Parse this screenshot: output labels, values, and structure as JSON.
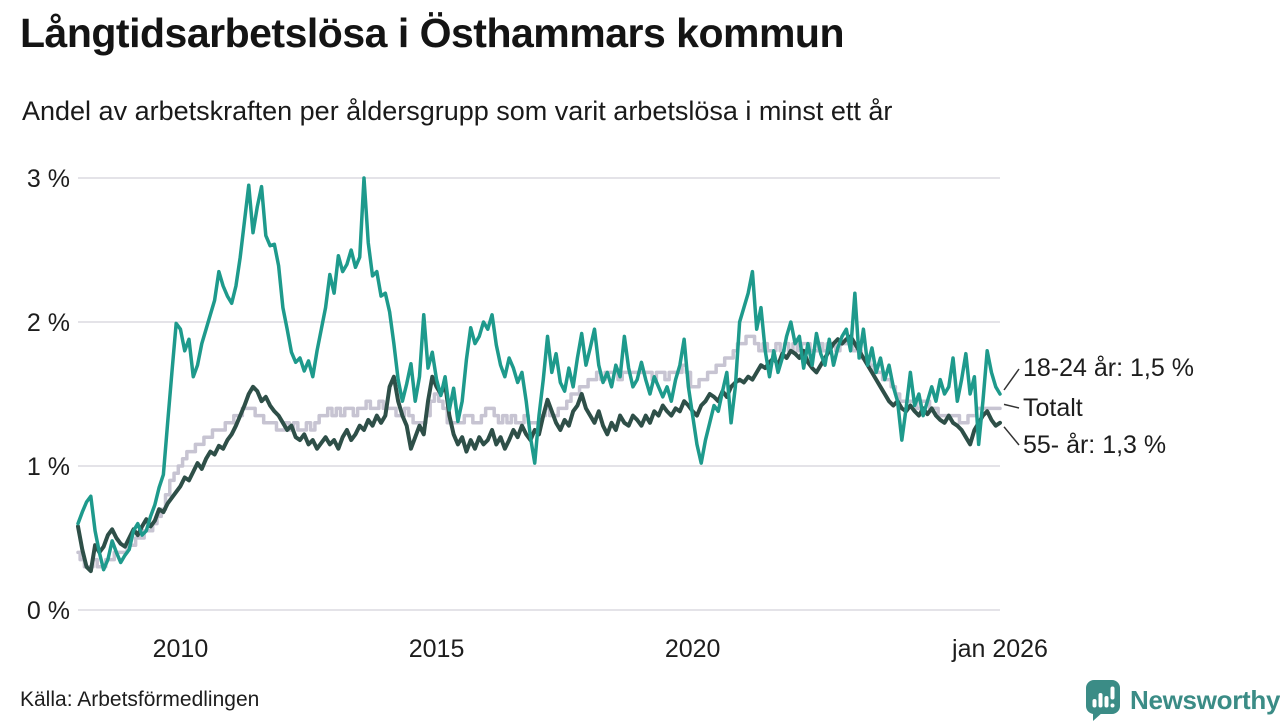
{
  "header": {
    "title": "Långtidsarbetslösa i Östhammars kommun",
    "subtitle": "Andel av arbetskraften per åldersgrupp som varit arbetslösa i minst ett år"
  },
  "footer": {
    "source": "Källa: Arbetsförmedlingen",
    "brand": "Newsworthy"
  },
  "colors": {
    "youth_line": "#1e9a8c",
    "total_line": "#c7c4d2",
    "senior_line": "#2e4f48",
    "gridline": "#e4e3e8",
    "text": "#1d1d1d",
    "brand_teal": "#3b8c86"
  },
  "chart_data": {
    "type": "line",
    "title": "Långtidsarbetslösa i Östhammars kommun",
    "subtitle": "Andel av arbetskraften per åldersgrupp som varit arbetslösa i minst ett år",
    "x_unit": "month",
    "x_range": [
      "2008-01",
      "2026-01"
    ],
    "ylim": [
      0,
      3
    ],
    "grid": "horizontal",
    "legend_position": "right-end-labels",
    "y_ticks": [
      {
        "value": 0,
        "label": "0 %"
      },
      {
        "value": 1,
        "label": "1 %"
      },
      {
        "value": 2,
        "label": "2 %"
      },
      {
        "value": 3,
        "label": "3 %"
      }
    ],
    "x_ticks": [
      {
        "month_index": 24,
        "label": "2010"
      },
      {
        "month_index": 84,
        "label": "2015"
      },
      {
        "month_index": 144,
        "label": "2020"
      },
      {
        "month_index": 216,
        "label": "jan 2026"
      }
    ],
    "series": [
      {
        "id": "18-24",
        "name": "18-24 år",
        "end_label": "18-24 år: 1,5 %",
        "end_value": 1.5,
        "color": "#1e9a8c",
        "width": 3.5,
        "step": false,
        "values": [
          0.6,
          0.68,
          0.75,
          0.79,
          0.55,
          0.4,
          0.28,
          0.35,
          0.48,
          0.4,
          0.33,
          0.38,
          0.42,
          0.55,
          0.6,
          0.52,
          0.55,
          0.65,
          0.73,
          0.85,
          0.94,
          1.3,
          1.65,
          1.99,
          1.95,
          1.8,
          1.88,
          1.62,
          1.7,
          1.85,
          1.95,
          2.05,
          2.15,
          2.35,
          2.25,
          2.18,
          2.13,
          2.25,
          2.45,
          2.7,
          2.95,
          2.62,
          2.8,
          2.94,
          2.6,
          2.53,
          2.54,
          2.39,
          2.1,
          1.95,
          1.79,
          1.72,
          1.75,
          1.66,
          1.73,
          1.62,
          1.8,
          1.95,
          2.1,
          2.33,
          2.2,
          2.46,
          2.35,
          2.4,
          2.5,
          2.38,
          2.45,
          3.0,
          2.55,
          2.32,
          2.35,
          2.18,
          2.2,
          2.07,
          1.85,
          1.6,
          1.45,
          1.57,
          1.71,
          1.45,
          1.62,
          2.05,
          1.68,
          1.79,
          1.6,
          1.49,
          1.62,
          1.39,
          1.54,
          1.31,
          1.45,
          1.74,
          1.96,
          1.85,
          1.9,
          2.0,
          1.95,
          2.05,
          1.84,
          1.7,
          1.62,
          1.75,
          1.68,
          1.58,
          1.65,
          1.45,
          1.2,
          1.02,
          1.35,
          1.6,
          1.9,
          1.65,
          1.78,
          1.58,
          1.52,
          1.68,
          1.55,
          1.75,
          1.92,
          1.7,
          1.82,
          1.95,
          1.7,
          1.58,
          1.65,
          1.55,
          1.7,
          1.62,
          1.9,
          1.68,
          1.55,
          1.6,
          1.72,
          1.6,
          1.5,
          1.62,
          1.55,
          1.48,
          1.55,
          1.45,
          1.6,
          1.7,
          1.88,
          1.55,
          1.35,
          1.15,
          1.02,
          1.18,
          1.3,
          1.42,
          1.38,
          1.52,
          1.65,
          1.3,
          1.55,
          2.0,
          2.1,
          2.2,
          2.35,
          1.95,
          2.1,
          1.8,
          1.62,
          1.8,
          1.65,
          1.75,
          1.9,
          2.0,
          1.85,
          1.9,
          1.68,
          1.85,
          1.7,
          1.92,
          1.78,
          1.7,
          1.88,
          1.7,
          1.82,
          1.9,
          1.95,
          1.8,
          2.2,
          1.75,
          1.95,
          1.7,
          1.82,
          1.65,
          1.75,
          1.6,
          1.7,
          1.55,
          1.45,
          1.18,
          1.4,
          1.65,
          1.42,
          1.5,
          1.35,
          1.45,
          1.55,
          1.45,
          1.6,
          1.5,
          1.55,
          1.75,
          1.45,
          1.6,
          1.78,
          1.5,
          1.62,
          1.15,
          1.45,
          1.8,
          1.65,
          1.55,
          1.5
        ]
      },
      {
        "id": "totalt",
        "name": "Totalt",
        "end_label": "Totalt",
        "end_value": 1.4,
        "color": "#c7c4d2",
        "width": 3.5,
        "step": true,
        "values": [
          0.4,
          0.35,
          0.3,
          0.3,
          0.35,
          0.3,
          0.3,
          0.35,
          0.35,
          0.4,
          0.4,
          0.4,
          0.45,
          0.45,
          0.5,
          0.5,
          0.55,
          0.55,
          0.6,
          0.65,
          0.7,
          0.8,
          0.9,
          0.95,
          1.0,
          1.05,
          1.1,
          1.1,
          1.15,
          1.15,
          1.2,
          1.2,
          1.25,
          1.25,
          1.25,
          1.3,
          1.3,
          1.35,
          1.35,
          1.4,
          1.4,
          1.4,
          1.35,
          1.35,
          1.3,
          1.3,
          1.3,
          1.25,
          1.25,
          1.3,
          1.25,
          1.3,
          1.25,
          1.25,
          1.3,
          1.25,
          1.3,
          1.35,
          1.35,
          1.4,
          1.35,
          1.4,
          1.35,
          1.4,
          1.4,
          1.35,
          1.4,
          1.4,
          1.45,
          1.4,
          1.4,
          1.45,
          1.4,
          1.4,
          1.4,
          1.35,
          1.35,
          1.4,
          1.35,
          1.3,
          1.3,
          1.3,
          1.35,
          1.45,
          1.5,
          1.45,
          1.4,
          1.3,
          1.3,
          1.3,
          1.3,
          1.35,
          1.35,
          1.3,
          1.3,
          1.35,
          1.4,
          1.4,
          1.35,
          1.3,
          1.35,
          1.3,
          1.35,
          1.3,
          1.3,
          1.35,
          1.3,
          1.3,
          1.3,
          1.35,
          1.4,
          1.35,
          1.35,
          1.4,
          1.4,
          1.45,
          1.5,
          1.5,
          1.55,
          1.55,
          1.6,
          1.6,
          1.65,
          1.6,
          1.65,
          1.65,
          1.65,
          1.6,
          1.65,
          1.65,
          1.65,
          1.65,
          1.65,
          1.65,
          1.65,
          1.6,
          1.65,
          1.65,
          1.6,
          1.65,
          1.65,
          1.65,
          1.7,
          1.65,
          1.55,
          1.55,
          1.6,
          1.6,
          1.65,
          1.65,
          1.7,
          1.7,
          1.75,
          1.75,
          1.8,
          1.85,
          1.85,
          1.9,
          1.9,
          1.85,
          1.8,
          1.85,
          1.8,
          1.8,
          1.85,
          1.8,
          1.85,
          1.8,
          1.85,
          1.8,
          1.85,
          1.85,
          1.8,
          1.8,
          1.85,
          1.8,
          1.85,
          1.85,
          1.8,
          1.85,
          1.85,
          1.85,
          1.8,
          1.8,
          1.75,
          1.75,
          1.7,
          1.65,
          1.65,
          1.6,
          1.6,
          1.55,
          1.5,
          1.45,
          1.45,
          1.45,
          1.45,
          1.4,
          1.45,
          1.45,
          1.4,
          1.4,
          1.35,
          1.35,
          1.35,
          1.35,
          1.35,
          1.3,
          1.3,
          1.35,
          1.35,
          1.4,
          1.4,
          1.4,
          1.4,
          1.4,
          1.4
        ]
      },
      {
        "id": "55",
        "name": "55- år",
        "end_label": "55- år: 1,3 %",
        "end_value": 1.3,
        "color": "#2e4f48",
        "width": 4,
        "step": false,
        "values": [
          0.58,
          0.42,
          0.3,
          0.27,
          0.45,
          0.4,
          0.44,
          0.52,
          0.56,
          0.5,
          0.46,
          0.44,
          0.5,
          0.56,
          0.52,
          0.58,
          0.63,
          0.58,
          0.62,
          0.7,
          0.68,
          0.74,
          0.78,
          0.82,
          0.86,
          0.92,
          0.9,
          0.96,
          1.02,
          0.98,
          1.05,
          1.1,
          1.08,
          1.14,
          1.12,
          1.18,
          1.22,
          1.28,
          1.35,
          1.42,
          1.5,
          1.55,
          1.52,
          1.45,
          1.48,
          1.42,
          1.38,
          1.35,
          1.3,
          1.25,
          1.28,
          1.2,
          1.18,
          1.22,
          1.15,
          1.18,
          1.12,
          1.16,
          1.2,
          1.15,
          1.18,
          1.12,
          1.2,
          1.25,
          1.18,
          1.22,
          1.28,
          1.25,
          1.32,
          1.28,
          1.35,
          1.3,
          1.35,
          1.55,
          1.62,
          1.45,
          1.35,
          1.28,
          1.12,
          1.2,
          1.28,
          1.22,
          1.45,
          1.62,
          1.55,
          1.5,
          1.57,
          1.35,
          1.22,
          1.15,
          1.2,
          1.1,
          1.18,
          1.12,
          1.2,
          1.15,
          1.18,
          1.25,
          1.15,
          1.2,
          1.12,
          1.18,
          1.25,
          1.2,
          1.28,
          1.22,
          1.18,
          1.25,
          1.22,
          1.35,
          1.46,
          1.38,
          1.3,
          1.25,
          1.32,
          1.28,
          1.38,
          1.42,
          1.5,
          1.4,
          1.35,
          1.3,
          1.38,
          1.28,
          1.22,
          1.3,
          1.25,
          1.35,
          1.3,
          1.28,
          1.35,
          1.32,
          1.28,
          1.35,
          1.3,
          1.38,
          1.35,
          1.42,
          1.38,
          1.35,
          1.4,
          1.38,
          1.45,
          1.42,
          1.38,
          1.35,
          1.42,
          1.45,
          1.5,
          1.48,
          1.45,
          1.52,
          1.48,
          1.55,
          1.58,
          1.6,
          1.58,
          1.62,
          1.6,
          1.65,
          1.7,
          1.68,
          1.72,
          1.75,
          1.7,
          1.78,
          1.75,
          1.8,
          1.78,
          1.75,
          1.8,
          1.72,
          1.68,
          1.65,
          1.7,
          1.75,
          1.8,
          1.85,
          1.88,
          1.85,
          1.88,
          1.9,
          1.85,
          1.8,
          1.75,
          1.7,
          1.65,
          1.6,
          1.55,
          1.5,
          1.45,
          1.42,
          1.45,
          1.4,
          1.38,
          1.42,
          1.38,
          1.35,
          1.4,
          1.36,
          1.4,
          1.35,
          1.32,
          1.3,
          1.35,
          1.3,
          1.28,
          1.25,
          1.2,
          1.15,
          1.25,
          1.3,
          1.35,
          1.38,
          1.32,
          1.28,
          1.3
        ]
      }
    ]
  }
}
